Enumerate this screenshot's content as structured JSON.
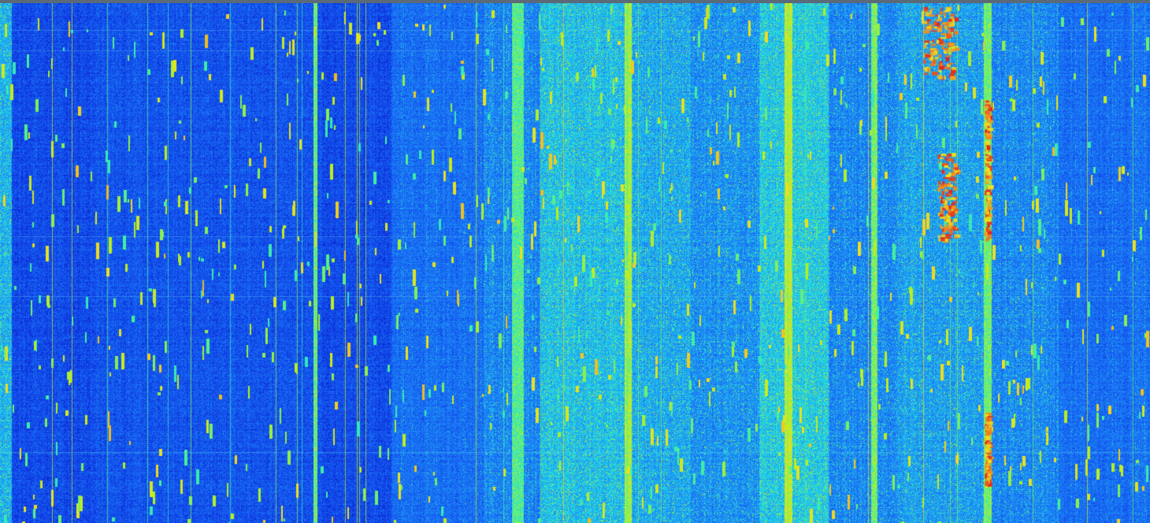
{
  "waterfall": {
    "description_label": "",
    "colormap": [
      "#0a1fd0",
      "#1456f0",
      "#1e90f5",
      "#20d8e8",
      "#40f0a0",
      "#b8f020",
      "#f0e020",
      "#f08020",
      "#e02020"
    ],
    "background_color": "#0a2fd8",
    "border_color": "#5a6a78"
  }
}
